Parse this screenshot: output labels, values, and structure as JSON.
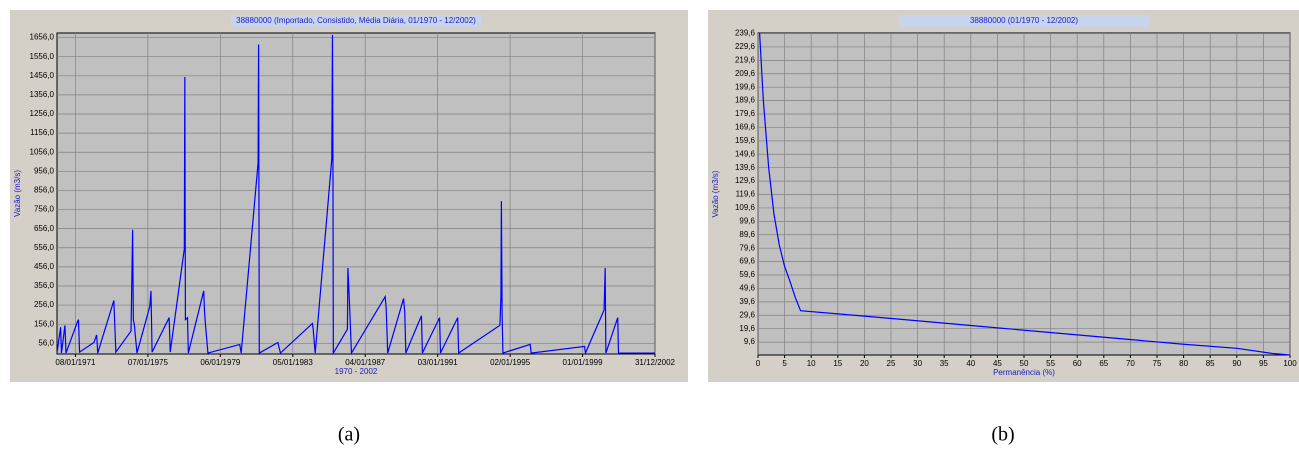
{
  "chart_data": [
    {
      "type": "line",
      "title": "38880000 (Importado, Consistido, Média Diária, 01/1970 - 12/2002)",
      "x_label": "1970 - 2002",
      "y_label": "Vazão (m3/s)",
      "caption": "(a)",
      "grid": true,
      "xlim": [
        "01/01/1970",
        "31/12/2002"
      ],
      "xticks": [
        "08/01/1971",
        "07/01/1975",
        "06/01/1979",
        "05/01/1983",
        "04/01/1987",
        "03/01/1991",
        "02/01/1995",
        "01/01/1999",
        "31/12/2002"
      ],
      "ylim": [
        0,
        1680
      ],
      "yticks": [
        {
          "value": 56,
          "label": "56,0"
        },
        {
          "value": 156,
          "label": "156,0"
        },
        {
          "value": 256,
          "label": "256,0"
        },
        {
          "value": 356,
          "label": "356,0"
        },
        {
          "value": 456,
          "label": "456,0"
        },
        {
          "value": 556,
          "label": "556,0"
        },
        {
          "value": 656,
          "label": "656,0"
        },
        {
          "value": 756,
          "label": "756,0"
        },
        {
          "value": 856,
          "label": "856,0"
        },
        {
          "value": 956,
          "label": "956,0"
        },
        {
          "value": 1056,
          "label": "1056,0"
        },
        {
          "value": 1156,
          "label": "1156,0"
        },
        {
          "value": 1256,
          "label": "1256,0"
        },
        {
          "value": 1356,
          "label": "1356,0"
        },
        {
          "value": 1456,
          "label": "1456,0"
        },
        {
          "value": 1556,
          "label": "1556,0"
        },
        {
          "value": 1656,
          "label": "1656,0"
        }
      ],
      "x": [
        "01/01/1970",
        "15/03/1970",
        "01/04/1970",
        "10/06/1970",
        "01/07/1970",
        "20/02/1971",
        "10/03/1971",
        "01/04/1971",
        "15/01/1972",
        "10/03/1972",
        "01/04/1972",
        "20/02/1973",
        "01/04/1973",
        "01/02/1974",
        "05/03/1974",
        "20/03/1974",
        "10/04/1974",
        "01/06/1974",
        "15/02/1975",
        "10/03/1975",
        "01/04/1975",
        "10/03/1976",
        "01/04/1976",
        "10/01/1977",
        "20/01/1977",
        "01/02/1977",
        "15/03/1977",
        "01/04/1977",
        "05/02/1978",
        "20/02/1978",
        "10/03/1978",
        "01/05/1978",
        "01/02/1980",
        "01/03/1980",
        "05/02/1981",
        "15/02/1981",
        "01/03/1981",
        "10/03/1982",
        "01/05/1982",
        "05/02/1984",
        "20/02/1984",
        "01/04/1984",
        "01/03/1985",
        "15/03/1985",
        "25/03/1985",
        "01/04/1985",
        "10/01/1986",
        "20/01/1986",
        "01/02/1986",
        "20/02/1986",
        "01/04/1986",
        "10/02/1988",
        "01/03/1988",
        "01/04/1988",
        "15/02/1989",
        "10/03/1989",
        "01/04/1989",
        "10/02/1990",
        "01/03/1990",
        "10/02/1991",
        "01/03/1991",
        "10/02/1992",
        "01/03/1992",
        "10/06/1994",
        "01/07/1994",
        "10/07/1994",
        "25/07/1994",
        "10/08/1994",
        "10/02/1996",
        "01/03/1996",
        "10/02/1999",
        "01/03/1999",
        "10/03/2000",
        "01/04/2000",
        "15/04/2000",
        "10/12/2000",
        "25/12/2000",
        "31/12/2002"
      ],
      "series": [
        {
          "color": "#0000ff",
          "values": [
            5,
            140,
            5,
            150,
            5,
            170,
            180,
            10,
            60,
            100,
            5,
            280,
            10,
            120,
            650,
            180,
            150,
            5,
            250,
            330,
            10,
            190,
            10,
            550,
            1450,
            180,
            190,
            5,
            330,
            230,
            160,
            5,
            50,
            5,
            1000,
            1620,
            5,
            60,
            5,
            160,
            130,
            5,
            1020,
            1670,
            950,
            5,
            130,
            450,
            380,
            270,
            5,
            300,
            240,
            5,
            290,
            220,
            5,
            200,
            5,
            190,
            5,
            190,
            5,
            150,
            300,
            800,
            200,
            5,
            50,
            5,
            40,
            5,
            230,
            450,
            5,
            190,
            5,
            5
          ]
        }
      ]
    },
    {
      "type": "line",
      "title": "38880000 (01/1970 - 12/2002)",
      "x_label": "Permanência (%)",
      "y_label": "Vazão (m3/s)",
      "caption": "(b)",
      "grid": true,
      "xlim": [
        0,
        100
      ],
      "xticks": [
        0,
        5,
        10,
        15,
        20,
        25,
        30,
        35,
        40,
        45,
        50,
        55,
        60,
        65,
        70,
        75,
        80,
        85,
        90,
        95,
        100
      ],
      "ylim": [
        0,
        240
      ],
      "yticks": [
        {
          "value": 9.6,
          "label": "9,6"
        },
        {
          "value": 19.6,
          "label": "19,6"
        },
        {
          "value": 29.6,
          "label": "29,6"
        },
        {
          "value": 39.6,
          "label": "39,6"
        },
        {
          "value": 49.6,
          "label": "49,6"
        },
        {
          "value": 59.6,
          "label": "59,6"
        },
        {
          "value": 69.6,
          "label": "69,6"
        },
        {
          "value": 79.6,
          "label": "79,6"
        },
        {
          "value": 89.6,
          "label": "89,6"
        },
        {
          "value": 99.6,
          "label": "99,6"
        },
        {
          "value": 109.6,
          "label": "109,6"
        },
        {
          "value": 119.6,
          "label": "119,6"
        },
        {
          "value": 129.6,
          "label": "129,6"
        },
        {
          "value": 139.6,
          "label": "139,6"
        },
        {
          "value": 149.6,
          "label": "149,6"
        },
        {
          "value": 159.6,
          "label": "159,6"
        },
        {
          "value": 169.6,
          "label": "169,6"
        },
        {
          "value": 179.6,
          "label": "179,6"
        },
        {
          "value": 189.6,
          "label": "189,6"
        },
        {
          "value": 199.6,
          "label": "199,6"
        },
        {
          "value": 209.6,
          "label": "209,6"
        },
        {
          "value": 219.6,
          "label": "219,6"
        },
        {
          "value": 229.6,
          "label": "229,6"
        },
        {
          "value": 239.6,
          "label": "239,6"
        }
      ],
      "x": [
        0.3,
        1,
        2,
        3,
        4,
        5,
        6,
        7,
        8,
        20,
        40,
        60,
        80,
        90,
        97,
        100
      ],
      "series": [
        {
          "color": "#0000ff",
          "values": [
            240,
            190,
            140,
            105,
            82,
            66,
            55,
            43,
            33,
            29,
            22,
            15,
            8,
            5,
            1,
            0
          ]
        }
      ]
    }
  ]
}
